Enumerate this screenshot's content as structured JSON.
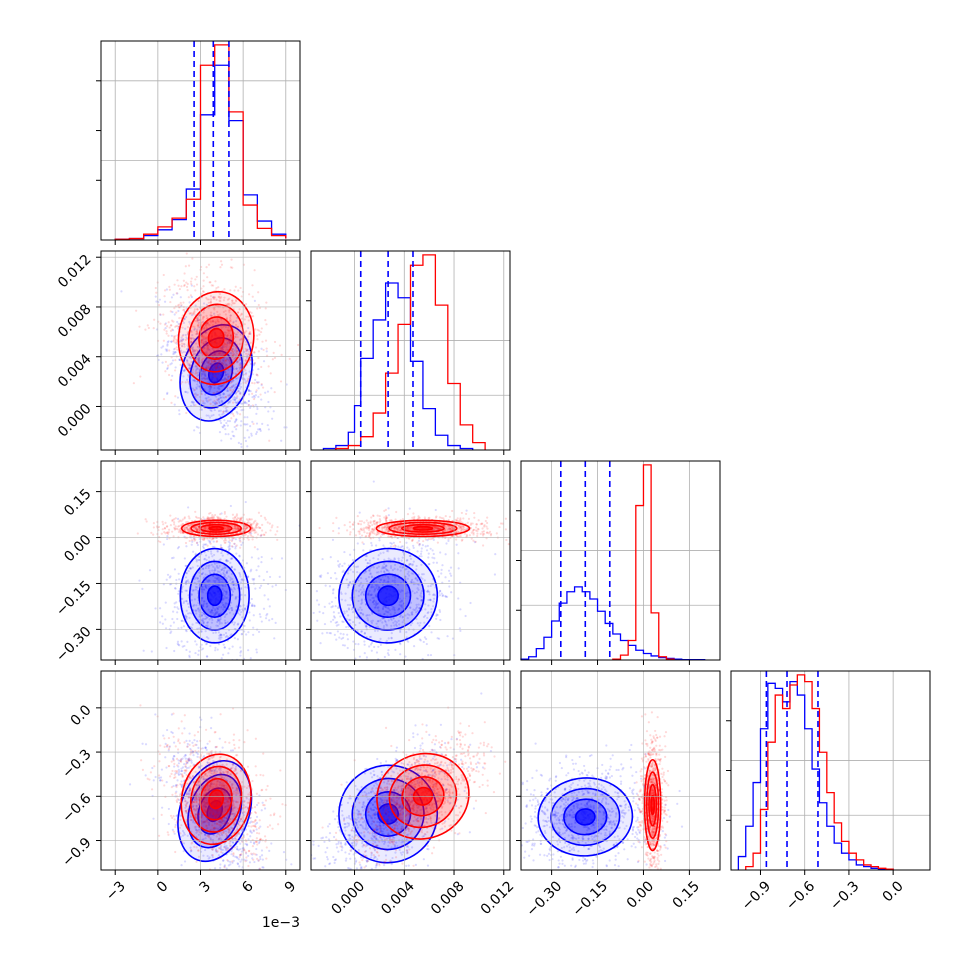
{
  "chart_data": {
    "type": "corner",
    "n_params": 4,
    "grid": true,
    "series": [
      {
        "name": "",
        "color": "#0000ff",
        "hist_style": "step",
        "contour_levels": 4
      },
      {
        "name": "",
        "color": "#ff0000",
        "hist_style": "step",
        "contour_levels": 4
      }
    ],
    "quantile_line_color": "#0000ff",
    "quantile_line_style": "dashed",
    "parameters": [
      {
        "range": [
          -0.004,
          0.01
        ],
        "ticks": [
          -0.003,
          0,
          0.003,
          0.006,
          0.009
        ],
        "tick_labels": [
          "−3",
          "0",
          "3",
          "6",
          "9"
        ],
        "offset_label": "1e−3",
        "quantiles": [
          0.00255,
          0.0039,
          0.005
        ],
        "hist": [
          {
            "series": 0,
            "edges": [
              -0.003,
              -0.002,
              -0.001,
              0.0,
              0.001,
              0.002,
              0.003,
              0.004,
              0.005,
              0.006,
              0.007,
              0.008,
              0.009
            ],
            "counts": [
              0.5,
              1.0,
              3,
              7,
              14,
              35,
              86,
              120,
              82,
              31,
              13,
              4,
              1
            ]
          },
          {
            "series": 1,
            "edges": [
              -0.003,
              -0.002,
              -0.001,
              0.0,
              0.001,
              0.002,
              0.003,
              0.004,
              0.005,
              0.006,
              0.007,
              0.008,
              0.009
            ],
            "counts": [
              0.5,
              1.0,
              4,
              9,
              15,
              28,
              120,
              134,
              88,
              24,
              8,
              3,
              1
            ]
          }
        ]
      },
      {
        "range": [
          -0.0035,
          0.0125
        ],
        "ticks": [
          0,
          0.004,
          0.008,
          0.012
        ],
        "tick_labels": [
          "0.000",
          "0.004",
          "0.008",
          "0.012"
        ],
        "offset_label": "",
        "quantiles": [
          0.0005,
          0.0027,
          0.0047
        ],
        "hist": [
          {
            "series": 0,
            "edges": [
              -0.0025,
              -0.0015,
              -0.0005,
              0.0,
              0.0005,
              0.0015,
              0.0025,
              0.0035,
              0.0045,
              0.0055,
              0.0065,
              0.0075,
              0.0085,
              0.0095
            ],
            "counts": [
              1,
              3,
              12,
              30,
              62,
              88,
              113,
              103,
              60,
              28,
              10,
              3,
              1
            ]
          },
          {
            "series": 1,
            "edges": [
              -0.0015,
              -0.0005,
              0.0005,
              0.0015,
              0.0025,
              0.0035,
              0.0045,
              0.0055,
              0.0065,
              0.0075,
              0.0085,
              0.0095,
              0.0105
            ],
            "counts": [
              1,
              3,
              9,
              25,
              52,
              85,
              125,
              132,
              98,
              45,
              17,
              5
            ]
          }
        ]
      },
      {
        "range": [
          -0.4,
          0.25
        ],
        "ticks": [
          -0.3,
          -0.15,
          0,
          0.15
        ],
        "tick_labels": [
          "−0.30",
          "−0.15",
          "0.00",
          "0.15"
        ],
        "offset_label": "",
        "quantiles": [
          -0.27,
          -0.19,
          -0.11
        ],
        "hist": [
          {
            "series": 0,
            "edges": [
              -0.4,
              -0.375,
              -0.35,
              -0.325,
              -0.3,
              -0.275,
              -0.25,
              -0.225,
              -0.2,
              -0.175,
              -0.15,
              -0.125,
              -0.1,
              -0.075,
              -0.05,
              -0.025,
              0.0,
              0.025,
              0.05,
              0.075,
              0.1,
              0.125,
              0.15,
              0.175,
              0.2
            ],
            "counts": [
              1,
              4,
              14,
              28,
              48,
              70,
              84,
              90,
              84,
              75,
              60,
              45,
              32,
              24,
              18,
              12,
              8,
              5,
              3,
              2,
              1,
              0.5,
              0.5,
              0.5
            ]
          },
          {
            "series": 1,
            "edges": [
              -0.1,
              -0.075,
              -0.05,
              -0.025,
              0.0,
              0.025,
              0.05,
              0.075,
              0.1
            ],
            "counts": [
              1,
              6,
              24,
              190,
              240,
              58,
              4,
              1
            ]
          }
        ]
      },
      {
        "range": [
          -1.1,
          0.25
        ],
        "ticks": [
          -0.9,
          -0.6,
          -0.3,
          0
        ],
        "tick_labels": [
          "−0.9",
          "−0.6",
          "−0.3",
          "0.0"
        ],
        "offset_label": "",
        "quantiles": [
          -0.86,
          -0.72,
          -0.51
        ],
        "hist": [
          {
            "series": 0,
            "edges": [
              -1.05,
              -1.0,
              -0.95,
              -0.9,
              -0.85,
              -0.8,
              -0.75,
              -0.7,
              -0.65,
              -0.6,
              -0.55,
              -0.5,
              -0.45,
              -0.4,
              -0.35,
              -0.3,
              -0.25,
              -0.2,
              -0.15,
              -0.1,
              -0.05,
              0.0
            ],
            "counts": [
              8,
              26,
              52,
              84,
              111,
              108,
              100,
              112,
              104,
              84,
              60,
              40,
              26,
              16,
              10,
              6,
              3,
              2,
              1,
              0.5,
              0.5
            ]
          },
          {
            "series": 1,
            "edges": [
              -1.0,
              -0.95,
              -0.9,
              -0.85,
              -0.8,
              -0.75,
              -0.7,
              -0.65,
              -0.6,
              -0.55,
              -0.5,
              -0.45,
              -0.4,
              -0.35,
              -0.3,
              -0.25,
              -0.2,
              -0.15,
              -0.1,
              -0.05,
              0.0
            ],
            "counts": [
              2,
              10,
              36,
              76,
              104,
              96,
              110,
              116,
              112,
              96,
              70,
              46,
              28,
              17,
              10,
              6,
              3,
              2,
              1,
              0.5
            ]
          }
        ]
      }
    ],
    "pairs": [
      {
        "x": 0,
        "y": 1,
        "blobs": [
          {
            "series": 1,
            "center": [
              0.0041,
              0.0055
            ],
            "spread": [
              0.0012,
              0.0017
            ],
            "rho": -0.2
          },
          {
            "series": 0,
            "center": [
              0.0041,
              0.0027
            ],
            "spread": [
              0.0011,
              0.0018
            ],
            "rho": -0.5
          }
        ]
      },
      {
        "x": 0,
        "y": 2,
        "blobs": [
          {
            "series": 1,
            "center": [
              0.0041,
              0.03
            ],
            "spread": [
              0.0011,
              0.012
            ],
            "rho": 0.0
          },
          {
            "series": 0,
            "center": [
              0.004,
              -0.19
            ],
            "spread": [
              0.0011,
              0.07
            ],
            "rho": 0.0
          }
        ]
      },
      {
        "x": 0,
        "y": 3,
        "blobs": [
          {
            "series": 1,
            "center": [
              0.0041,
              -0.62
            ],
            "spread": [
              0.0011,
              0.14
            ],
            "rho": -0.3
          },
          {
            "series": 0,
            "center": [
              0.004,
              -0.7
            ],
            "spread": [
              0.0011,
              0.16
            ],
            "rho": -0.55
          }
        ]
      },
      {
        "x": 1,
        "y": 2,
        "blobs": [
          {
            "series": 1,
            "center": [
              0.0055,
              0.03
            ],
            "spread": [
              0.0017,
              0.012
            ],
            "rho": 0.0
          },
          {
            "series": 0,
            "center": [
              0.0027,
              -0.19
            ],
            "spread": [
              0.0018,
              0.07
            ],
            "rho": 0.25
          }
        ]
      },
      {
        "x": 1,
        "y": 3,
        "blobs": [
          {
            "series": 1,
            "center": [
              0.0055,
              -0.6
            ],
            "spread": [
              0.0017,
              0.13
            ],
            "rho": 0.6
          },
          {
            "series": 0,
            "center": [
              0.0027,
              -0.72
            ],
            "spread": [
              0.0018,
              0.15
            ],
            "rho": 0.6
          }
        ]
      },
      {
        "x": 2,
        "y": 3,
        "blobs": [
          {
            "series": 1,
            "center": [
              0.03,
              -0.66
            ],
            "spread": [
              0.012,
              0.14
            ],
            "rho": 0.0
          },
          {
            "series": 0,
            "center": [
              -0.19,
              -0.74
            ],
            "spread": [
              0.07,
              0.12
            ],
            "rho": 0.1
          }
        ]
      }
    ]
  }
}
